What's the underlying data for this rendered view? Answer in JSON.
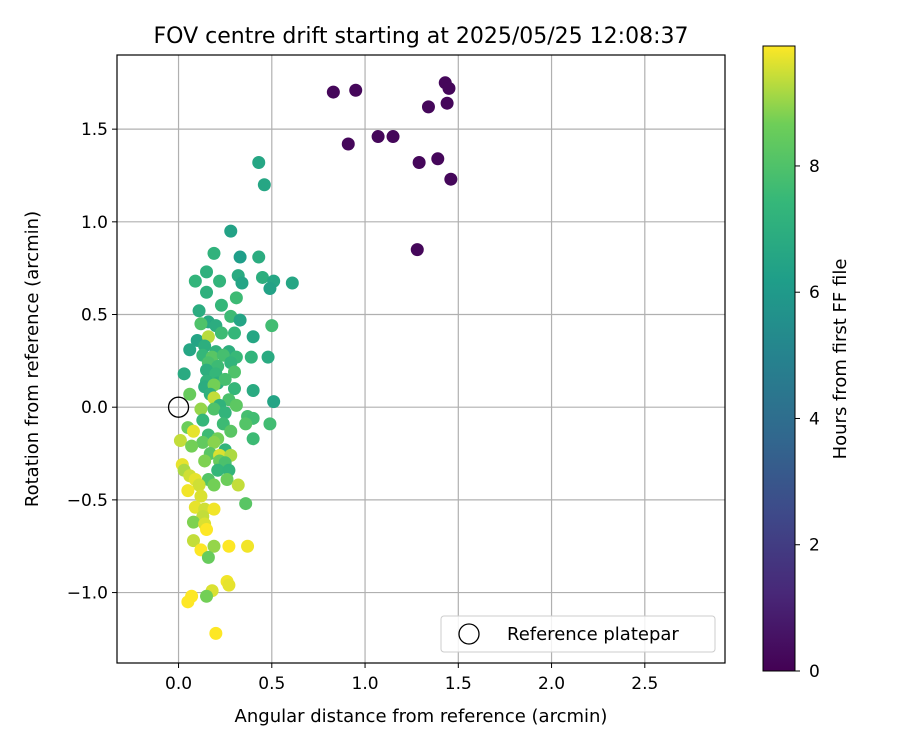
{
  "chart_data": {
    "type": "scatter",
    "title": "FOV centre drift starting at 2025/05/25 12:08:37",
    "xlabel": "Angular distance from reference (arcmin)",
    "ylabel": "Rotation from reference (arcmin)",
    "xlim": [
      -0.33,
      2.93
    ],
    "ylim": [
      -1.38,
      1.9
    ],
    "xticks": [
      0.0,
      0.5,
      1.0,
      1.5,
      2.0,
      2.5
    ],
    "xtick_labels": [
      "0.0",
      "0.5",
      "1.0",
      "1.5",
      "2.0",
      "2.5"
    ],
    "yticks": [
      -1.0,
      -0.5,
      0.0,
      0.5,
      1.0,
      1.5
    ],
    "ytick_labels": [
      "−1.0",
      "−0.5",
      "0.0",
      "0.5",
      "1.0",
      "1.5"
    ],
    "grid": true,
    "colormap": "viridis",
    "colorbar": {
      "label": "Hours from first FF file",
      "range": [
        0,
        9.9
      ],
      "ticks": [
        0,
        2,
        4,
        6,
        8
      ],
      "tick_labels": [
        "0",
        "2",
        "4",
        "6",
        "8"
      ]
    },
    "legend": {
      "position": "bottom-right",
      "entries": [
        {
          "label": "Reference platepar",
          "marker": "open-circle"
        }
      ]
    },
    "reference_point": {
      "x": 0.0,
      "y": 0.0
    },
    "points": [
      {
        "x": 0.83,
        "y": 1.7,
        "c": 0.2
      },
      {
        "x": 0.95,
        "y": 1.71,
        "c": 0.2
      },
      {
        "x": 1.43,
        "y": 1.75,
        "c": 0.2
      },
      {
        "x": 1.45,
        "y": 1.72,
        "c": 0.2
      },
      {
        "x": 1.34,
        "y": 1.62,
        "c": 0.2
      },
      {
        "x": 1.44,
        "y": 1.64,
        "c": 0.2
      },
      {
        "x": 1.07,
        "y": 1.46,
        "c": 0.2
      },
      {
        "x": 1.15,
        "y": 1.46,
        "c": 0.2
      },
      {
        "x": 0.91,
        "y": 1.42,
        "c": 0.2
      },
      {
        "x": 1.39,
        "y": 1.34,
        "c": 0.2
      },
      {
        "x": 1.29,
        "y": 1.32,
        "c": 0.2
      },
      {
        "x": 1.46,
        "y": 1.23,
        "c": 0.2
      },
      {
        "x": 1.28,
        "y": 0.85,
        "c": 0.2
      },
      {
        "x": 0.43,
        "y": 1.32,
        "c": 6.6
      },
      {
        "x": 0.46,
        "y": 1.2,
        "c": 6.6
      },
      {
        "x": 0.28,
        "y": 0.95,
        "c": 6.4
      },
      {
        "x": 0.19,
        "y": 0.83,
        "c": 7.2
      },
      {
        "x": 0.33,
        "y": 0.81,
        "c": 6.2
      },
      {
        "x": 0.43,
        "y": 0.81,
        "c": 6.9
      },
      {
        "x": 0.15,
        "y": 0.73,
        "c": 7.1
      },
      {
        "x": 0.32,
        "y": 0.71,
        "c": 6.8
      },
      {
        "x": 0.45,
        "y": 0.7,
        "c": 7.0
      },
      {
        "x": 0.09,
        "y": 0.68,
        "c": 7.3
      },
      {
        "x": 0.22,
        "y": 0.68,
        "c": 7.3
      },
      {
        "x": 0.34,
        "y": 0.67,
        "c": 6.5
      },
      {
        "x": 0.51,
        "y": 0.68,
        "c": 6.6
      },
      {
        "x": 0.61,
        "y": 0.67,
        "c": 6.6
      },
      {
        "x": 0.49,
        "y": 0.64,
        "c": 6.4
      },
      {
        "x": 0.15,
        "y": 0.62,
        "c": 7.1
      },
      {
        "x": 0.31,
        "y": 0.59,
        "c": 7.6
      },
      {
        "x": 0.23,
        "y": 0.55,
        "c": 7.4
      },
      {
        "x": 0.11,
        "y": 0.52,
        "c": 6.9
      },
      {
        "x": 0.28,
        "y": 0.49,
        "c": 7.6
      },
      {
        "x": 0.16,
        "y": 0.46,
        "c": 6.7
      },
      {
        "x": 0.33,
        "y": 0.47,
        "c": 6.5
      },
      {
        "x": 0.12,
        "y": 0.45,
        "c": 8.0
      },
      {
        "x": 0.2,
        "y": 0.44,
        "c": 6.9
      },
      {
        "x": 0.5,
        "y": 0.44,
        "c": 7.7
      },
      {
        "x": 0.23,
        "y": 0.4,
        "c": 7.6
      },
      {
        "x": 0.3,
        "y": 0.4,
        "c": 7.4
      },
      {
        "x": 0.1,
        "y": 0.36,
        "c": 6.5
      },
      {
        "x": 0.16,
        "y": 0.38,
        "c": 9.3
      },
      {
        "x": 0.4,
        "y": 0.38,
        "c": 6.6
      },
      {
        "x": 0.06,
        "y": 0.31,
        "c": 6.6
      },
      {
        "x": 0.14,
        "y": 0.33,
        "c": 7.0
      },
      {
        "x": 0.2,
        "y": 0.3,
        "c": 7.2
      },
      {
        "x": 0.27,
        "y": 0.3,
        "c": 7.0
      },
      {
        "x": 0.13,
        "y": 0.28,
        "c": 7.4
      },
      {
        "x": 0.18,
        "y": 0.27,
        "c": 8.2
      },
      {
        "x": 0.24,
        "y": 0.28,
        "c": 7.8
      },
      {
        "x": 0.31,
        "y": 0.27,
        "c": 7.5
      },
      {
        "x": 0.39,
        "y": 0.27,
        "c": 7.3
      },
      {
        "x": 0.48,
        "y": 0.27,
        "c": 6.8
      },
      {
        "x": 0.16,
        "y": 0.24,
        "c": 7.9
      },
      {
        "x": 0.21,
        "y": 0.22,
        "c": 7.6
      },
      {
        "x": 0.28,
        "y": 0.24,
        "c": 7.3
      },
      {
        "x": 0.15,
        "y": 0.2,
        "c": 7.0
      },
      {
        "x": 0.03,
        "y": 0.18,
        "c": 6.8
      },
      {
        "x": 0.2,
        "y": 0.18,
        "c": 7.4
      },
      {
        "x": 0.3,
        "y": 0.19,
        "c": 8.0
      },
      {
        "x": 0.15,
        "y": 0.14,
        "c": 7.2
      },
      {
        "x": 0.21,
        "y": 0.13,
        "c": 7.0
      },
      {
        "x": 0.25,
        "y": 0.15,
        "c": 7.8
      },
      {
        "x": 0.14,
        "y": 0.11,
        "c": 6.9
      },
      {
        "x": 0.19,
        "y": 0.12,
        "c": 8.7
      },
      {
        "x": 0.3,
        "y": 0.1,
        "c": 7.4
      },
      {
        "x": 0.06,
        "y": 0.07,
        "c": 8.5
      },
      {
        "x": 0.17,
        "y": 0.07,
        "c": 7.1
      },
      {
        "x": 0.4,
        "y": 0.09,
        "c": 6.8
      },
      {
        "x": 0.19,
        "y": 0.05,
        "c": 9.4
      },
      {
        "x": 0.27,
        "y": 0.04,
        "c": 7.9
      },
      {
        "x": 0.51,
        "y": 0.03,
        "c": 6.5
      },
      {
        "x": 0.22,
        "y": 0.01,
        "c": 7.2
      },
      {
        "x": 0.31,
        "y": 0.01,
        "c": 8.3
      },
      {
        "x": 0.12,
        "y": -0.01,
        "c": 9.0
      },
      {
        "x": 0.19,
        "y": -0.01,
        "c": 8.0
      },
      {
        "x": 0.25,
        "y": -0.03,
        "c": 7.3
      },
      {
        "x": 0.37,
        "y": -0.05,
        "c": 7.8
      },
      {
        "x": 0.13,
        "y": -0.07,
        "c": 7.4
      },
      {
        "x": 0.4,
        "y": -0.06,
        "c": 7.7
      },
      {
        "x": 0.24,
        "y": -0.09,
        "c": 7.6
      },
      {
        "x": 0.36,
        "y": -0.09,
        "c": 8.1
      },
      {
        "x": 0.49,
        "y": -0.09,
        "c": 7.7
      },
      {
        "x": 0.05,
        "y": -0.11,
        "c": 8.6
      },
      {
        "x": 0.08,
        "y": -0.13,
        "c": 9.7
      },
      {
        "x": 0.28,
        "y": -0.13,
        "c": 8.2
      },
      {
        "x": 0.16,
        "y": -0.15,
        "c": 7.6
      },
      {
        "x": 0.21,
        "y": -0.17,
        "c": 8.7
      },
      {
        "x": 0.4,
        "y": -0.17,
        "c": 7.6
      },
      {
        "x": 0.01,
        "y": -0.18,
        "c": 9.4
      },
      {
        "x": 0.13,
        "y": -0.19,
        "c": 8.4
      },
      {
        "x": 0.19,
        "y": -0.19,
        "c": 8.9
      },
      {
        "x": 0.07,
        "y": -0.21,
        "c": 8.7
      },
      {
        "x": 0.25,
        "y": -0.23,
        "c": 7.3
      },
      {
        "x": 0.17,
        "y": -0.25,
        "c": 8.2
      },
      {
        "x": 0.22,
        "y": -0.26,
        "c": 9.6
      },
      {
        "x": 0.28,
        "y": -0.26,
        "c": 9.2
      },
      {
        "x": 0.14,
        "y": -0.29,
        "c": 8.8
      },
      {
        "x": 0.22,
        "y": -0.29,
        "c": 8.5
      },
      {
        "x": 0.25,
        "y": -0.3,
        "c": 7.9
      },
      {
        "x": 0.02,
        "y": -0.31,
        "c": 9.7
      },
      {
        "x": 0.03,
        "y": -0.34,
        "c": 9.2
      },
      {
        "x": 0.21,
        "y": -0.34,
        "c": 7.4
      },
      {
        "x": 0.27,
        "y": -0.34,
        "c": 7.3
      },
      {
        "x": 0.06,
        "y": -0.37,
        "c": 9.5
      },
      {
        "x": 0.09,
        "y": -0.39,
        "c": 9.7
      },
      {
        "x": 0.16,
        "y": -0.39,
        "c": 8.1
      },
      {
        "x": 0.26,
        "y": -0.39,
        "c": 8.6
      },
      {
        "x": 0.11,
        "y": -0.42,
        "c": 9.5
      },
      {
        "x": 0.19,
        "y": -0.42,
        "c": 8.7
      },
      {
        "x": 0.32,
        "y": -0.42,
        "c": 9.4
      },
      {
        "x": 0.05,
        "y": -0.45,
        "c": 9.8
      },
      {
        "x": 0.12,
        "y": -0.48,
        "c": 9.6
      },
      {
        "x": 0.36,
        "y": -0.52,
        "c": 8.2
      },
      {
        "x": 0.09,
        "y": -0.54,
        "c": 9.7
      },
      {
        "x": 0.14,
        "y": -0.55,
        "c": 9.5
      },
      {
        "x": 0.19,
        "y": -0.55,
        "c": 9.8
      },
      {
        "x": 0.13,
        "y": -0.59,
        "c": 9.4
      },
      {
        "x": 0.08,
        "y": -0.62,
        "c": 8.8
      },
      {
        "x": 0.14,
        "y": -0.63,
        "c": 9.6
      },
      {
        "x": 0.15,
        "y": -0.66,
        "c": 9.9
      },
      {
        "x": 0.08,
        "y": -0.72,
        "c": 9.4
      },
      {
        "x": 0.19,
        "y": -0.75,
        "c": 9.0
      },
      {
        "x": 0.27,
        "y": -0.75,
        "c": 9.9
      },
      {
        "x": 0.37,
        "y": -0.75,
        "c": 9.8
      },
      {
        "x": 0.12,
        "y": -0.77,
        "c": 9.9
      },
      {
        "x": 0.16,
        "y": -0.81,
        "c": 8.5
      },
      {
        "x": 0.26,
        "y": -0.94,
        "c": 9.8
      },
      {
        "x": 0.27,
        "y": -0.96,
        "c": 9.7
      },
      {
        "x": 0.18,
        "y": -0.99,
        "c": 9.6
      },
      {
        "x": 0.07,
        "y": -1.02,
        "c": 9.9
      },
      {
        "x": 0.15,
        "y": -1.02,
        "c": 8.7
      },
      {
        "x": 0.05,
        "y": -1.05,
        "c": 9.9
      },
      {
        "x": 0.2,
        "y": -1.22,
        "c": 9.9
      }
    ]
  }
}
